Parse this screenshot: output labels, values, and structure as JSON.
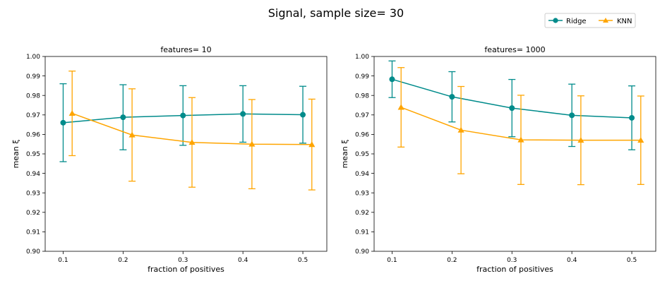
{
  "figure": {
    "suptitle": "Signal, sample size= 30"
  },
  "legend": {
    "entries": [
      {
        "label": "Ridge",
        "color": "#008b8b",
        "marker": "circle"
      },
      {
        "label": "KNN",
        "color": "#ffa500",
        "marker": "triangle"
      }
    ],
    "placement": "top-right"
  },
  "chart_data": [
    {
      "type": "line",
      "title": "features= 10",
      "xlabel": "fraction of positives",
      "ylabel": "mean ξ",
      "x": [
        0.1,
        0.2,
        0.3,
        0.4,
        0.5
      ],
      "xlim": [
        0.07,
        0.54
      ],
      "ylim": [
        0.9,
        1.0
      ],
      "xticks": [
        "0.1",
        "0.2",
        "0.3",
        "0.4",
        "0.5"
      ],
      "yticks": [
        "0.90",
        "0.91",
        "0.92",
        "0.93",
        "0.94",
        "0.95",
        "0.96",
        "0.97",
        "0.98",
        "0.99",
        "1.00"
      ],
      "grid": false,
      "series": [
        {
          "name": "Ridge",
          "color": "#008b8b",
          "marker": "circle",
          "x_offset": 0,
          "values": [
            0.966,
            0.9688,
            0.9697,
            0.9705,
            0.9701
          ],
          "err": [
            0.02,
            0.0167,
            0.0153,
            0.0145,
            0.0146
          ]
        },
        {
          "name": "KNN",
          "color": "#ffa500",
          "marker": "triangle",
          "x_offset": 0.015,
          "values": [
            0.9708,
            0.9597,
            0.9559,
            0.955,
            0.9548
          ],
          "err": [
            0.0217,
            0.0237,
            0.023,
            0.0229,
            0.0233
          ]
        }
      ]
    },
    {
      "type": "line",
      "title": "features= 1000",
      "xlabel": "fraction of positives",
      "ylabel": "mean ξ",
      "x": [
        0.1,
        0.2,
        0.3,
        0.4,
        0.5
      ],
      "xlim": [
        0.07,
        0.54
      ],
      "ylim": [
        0.9,
        1.0
      ],
      "xticks": [
        "0.1",
        "0.2",
        "0.3",
        "0.4",
        "0.5"
      ],
      "yticks": [
        "0.90",
        "0.91",
        "0.92",
        "0.93",
        "0.94",
        "0.95",
        "0.96",
        "0.97",
        "0.98",
        "0.99",
        "1.00"
      ],
      "grid": false,
      "series": [
        {
          "name": "Ridge",
          "color": "#008b8b",
          "marker": "circle",
          "x_offset": 0,
          "values": [
            0.9883,
            0.9793,
            0.9735,
            0.9698,
            0.9685
          ],
          "err": [
            0.0094,
            0.0129,
            0.0147,
            0.016,
            0.0164
          ]
        },
        {
          "name": "KNN",
          "color": "#ffa500",
          "marker": "triangle",
          "x_offset": 0.015,
          "values": [
            0.9739,
            0.9622,
            0.9572,
            0.957,
            0.957
          ],
          "err": [
            0.0204,
            0.0224,
            0.0229,
            0.0228,
            0.0227
          ]
        }
      ]
    }
  ]
}
